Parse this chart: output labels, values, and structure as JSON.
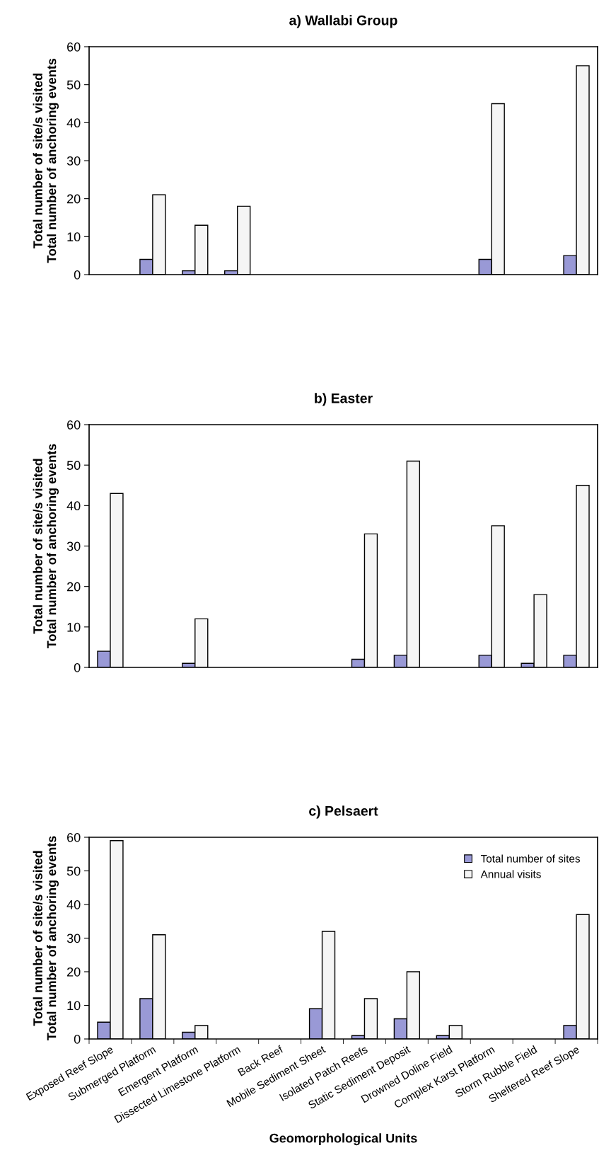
{
  "chart_data": [
    {
      "type": "bar",
      "title": "a) Wallabi Group",
      "ylabel": "Total number of site/s visited\nTotal number of anchoring events",
      "categories": [
        null,
        null,
        null,
        null,
        null,
        null,
        null,
        null,
        null,
        null,
        null,
        null
      ],
      "series": [
        {
          "color": "#9999d6",
          "values": [
            null,
            4,
            1,
            1,
            null,
            null,
            null,
            null,
            null,
            4,
            null,
            5
          ]
        },
        {
          "color": "#f5f5f5",
          "values": [
            null,
            21,
            13,
            18,
            null,
            null,
            null,
            null,
            null,
            45,
            null,
            55
          ]
        }
      ],
      "ylim": [
        0,
        60
      ],
      "yticks": [
        0,
        10,
        20,
        30,
        40,
        50,
        60
      ],
      "tick_labels": "y",
      "grid": false,
      "legend": false
    },
    {
      "type": "bar",
      "title": "b) Easter",
      "ylabel": "Total number of site/s visited\nTotal number of anchoring events",
      "categories": [
        null,
        null,
        null,
        null,
        null,
        null,
        null,
        null,
        null,
        null,
        null,
        null
      ],
      "series": [
        {
          "color": "#9999d6",
          "values": [
            4,
            null,
            1,
            null,
            null,
            null,
            2,
            3,
            null,
            3,
            1,
            3
          ]
        },
        {
          "color": "#f5f5f5",
          "values": [
            43,
            null,
            12,
            null,
            null,
            null,
            33,
            51,
            null,
            35,
            18,
            45
          ]
        }
      ],
      "ylim": [
        0,
        60
      ],
      "yticks": [
        0,
        10,
        20,
        30,
        40,
        50,
        60
      ],
      "tick_labels": "y",
      "grid": false,
      "legend": false
    },
    {
      "type": "bar",
      "title": "c) Pelsaert",
      "ylabel": "Total number of site/s visited\nTotal number of anchoring events",
      "xlabel": "Geomorphological Units",
      "categories": [
        "Exposed Reef Slope",
        "Submerged Platform",
        "Emergent Platform",
        "Dissected Limestone Platform",
        "Back Reef",
        "Mobile Sediment Sheet",
        "Isolated Patch Reefs",
        "Static Sediment Deposit",
        "Drowned Doline Field",
        "Complex Karst Platform",
        "Storm Rubble Field",
        "Sheltered Reef Slope"
      ],
      "series": [
        {
          "name": "Total number of sites",
          "color": "#9999d6",
          "values": [
            5,
            12,
            2,
            null,
            null,
            9,
            1,
            6,
            1,
            null,
            null,
            4
          ]
        },
        {
          "name": "Annual visits",
          "color": "#f5f5f5",
          "values": [
            59,
            31,
            4,
            null,
            null,
            32,
            12,
            20,
            4,
            null,
            null,
            37
          ]
        }
      ],
      "ylim": [
        0,
        60
      ],
      "yticks": [
        0,
        10,
        20,
        30,
        40,
        50,
        60
      ],
      "grid": false,
      "legend": "top right"
    }
  ]
}
